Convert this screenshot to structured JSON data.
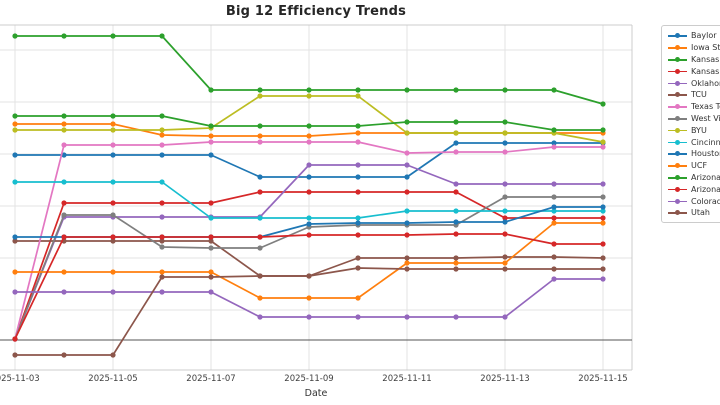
{
  "title": "Big 12 Efficiency Trends",
  "chart_data": {
    "type": "line",
    "title": "Big 12 Efficiency Trends",
    "xlabel": "Date",
    "x": [
      "2025-11-03",
      "2025-11-04",
      "2025-11-05",
      "2025-11-06",
      "2025-11-07",
      "2025-11-08",
      "2025-11-09",
      "2025-11-10",
      "2025-11-11",
      "2025-11-12",
      "2025-11-13",
      "2025-11-14",
      "2025-11-15"
    ],
    "x_tick_labels": [
      "2025-11-03",
      "2025-11-05",
      "2025-11-07",
      "2025-11-09",
      "2025-11-11",
      "2025-11-13",
      "2025-11-15"
    ],
    "ylim": [
      -30,
      315
    ],
    "y_tick_labels_visible": false,
    "y_gridlines": [
      30,
      82,
      134,
      186,
      238,
      290
    ],
    "baseline_value": 0,
    "grid": true,
    "legend_position": "outside-right",
    "series": [
      {
        "name": "Baylor",
        "color": "#1f77b4",
        "values": [
          185,
          185,
          185,
          185,
          185,
          163,
          163,
          163,
          163,
          197,
          197,
          197,
          197
        ]
      },
      {
        "name": "Iowa State",
        "color": "#ff7f0e",
        "values": [
          216,
          216,
          216,
          205,
          204,
          204,
          204,
          207,
          207,
          207,
          207,
          207,
          207
        ]
      },
      {
        "name": "Kansas",
        "color": "#2ca02c",
        "values": [
          304,
          304,
          304,
          304,
          250,
          250,
          250,
          250,
          250,
          250,
          250,
          250,
          236
        ]
      },
      {
        "name": "Kansas State",
        "color": "#d62728",
        "values": [
          1,
          137,
          137,
          137,
          137,
          148,
          148,
          148,
          148,
          148,
          122,
          122,
          122
        ]
      },
      {
        "name": "Oklahoma State",
        "color": "#9467bd",
        "values": [
          1,
          123,
          123,
          123,
          123,
          123,
          175,
          175,
          175,
          156,
          156,
          156,
          156
        ]
      },
      {
        "name": "TCU",
        "color": "#8c564b",
        "values": [
          99,
          99,
          99,
          99,
          99,
          64,
          64,
          82,
          82,
          82,
          83,
          83,
          82
        ]
      },
      {
        "name": "Texas Tech",
        "color": "#e377c2",
        "values": [
          1,
          195,
          195,
          195,
          198,
          198,
          198,
          198,
          187,
          188,
          188,
          193,
          193
        ]
      },
      {
        "name": "West Virginia",
        "color": "#7f7f7f",
        "values": [
          1,
          125,
          125,
          93,
          92,
          92,
          113,
          115,
          115,
          115,
          143,
          143,
          143
        ]
      },
      {
        "name": "BYU",
        "color": "#bcbd22",
        "values": [
          210,
          210,
          210,
          210,
          212,
          244,
          244,
          244,
          207,
          207,
          207,
          207,
          198
        ]
      },
      {
        "name": "Cincinnati",
        "color": "#17becf",
        "values": [
          158,
          158,
          158,
          158,
          122,
          122,
          122,
          122,
          129,
          129,
          129,
          129,
          129
        ]
      },
      {
        "name": "Houston",
        "color": "#1f77b4",
        "values": [
          103,
          103,
          103,
          103,
          103,
          103,
          116,
          117,
          117,
          118,
          118,
          133,
          133
        ]
      },
      {
        "name": "UCF",
        "color": "#ff7f0e",
        "values": [
          68,
          68,
          68,
          68,
          68,
          42,
          42,
          42,
          77,
          77,
          77,
          117,
          117
        ]
      },
      {
        "name": "Arizona",
        "color": "#2ca02c",
        "values": [
          224,
          224,
          224,
          224,
          214,
          214,
          214,
          214,
          218,
          218,
          218,
          210,
          210
        ]
      },
      {
        "name": "Arizona State",
        "color": "#d62728",
        "values": [
          1,
          103,
          103,
          103,
          103,
          103,
          105,
          105,
          105,
          106,
          106,
          96,
          96
        ]
      },
      {
        "name": "Colorado",
        "color": "#9467bd",
        "values": [
          48,
          48,
          48,
          48,
          48,
          23,
          23,
          23,
          23,
          23,
          23,
          61,
          61
        ]
      },
      {
        "name": "Utah",
        "color": "#8c564b",
        "values": [
          -15,
          -15,
          -15,
          63,
          63,
          64,
          64,
          72,
          71,
          71,
          71,
          71,
          71
        ]
      }
    ]
  },
  "legend": {
    "entries": [
      "Baylor",
      "Iowa State",
      "Kansas",
      "Kansas State",
      "Oklahoma State",
      "TCU",
      "Texas Tech",
      "West Virginia",
      "BYU",
      "Cincinnati",
      "Houston",
      "UCF",
      "Arizona",
      "Arizona State",
      "Colorado",
      "Utah"
    ]
  }
}
